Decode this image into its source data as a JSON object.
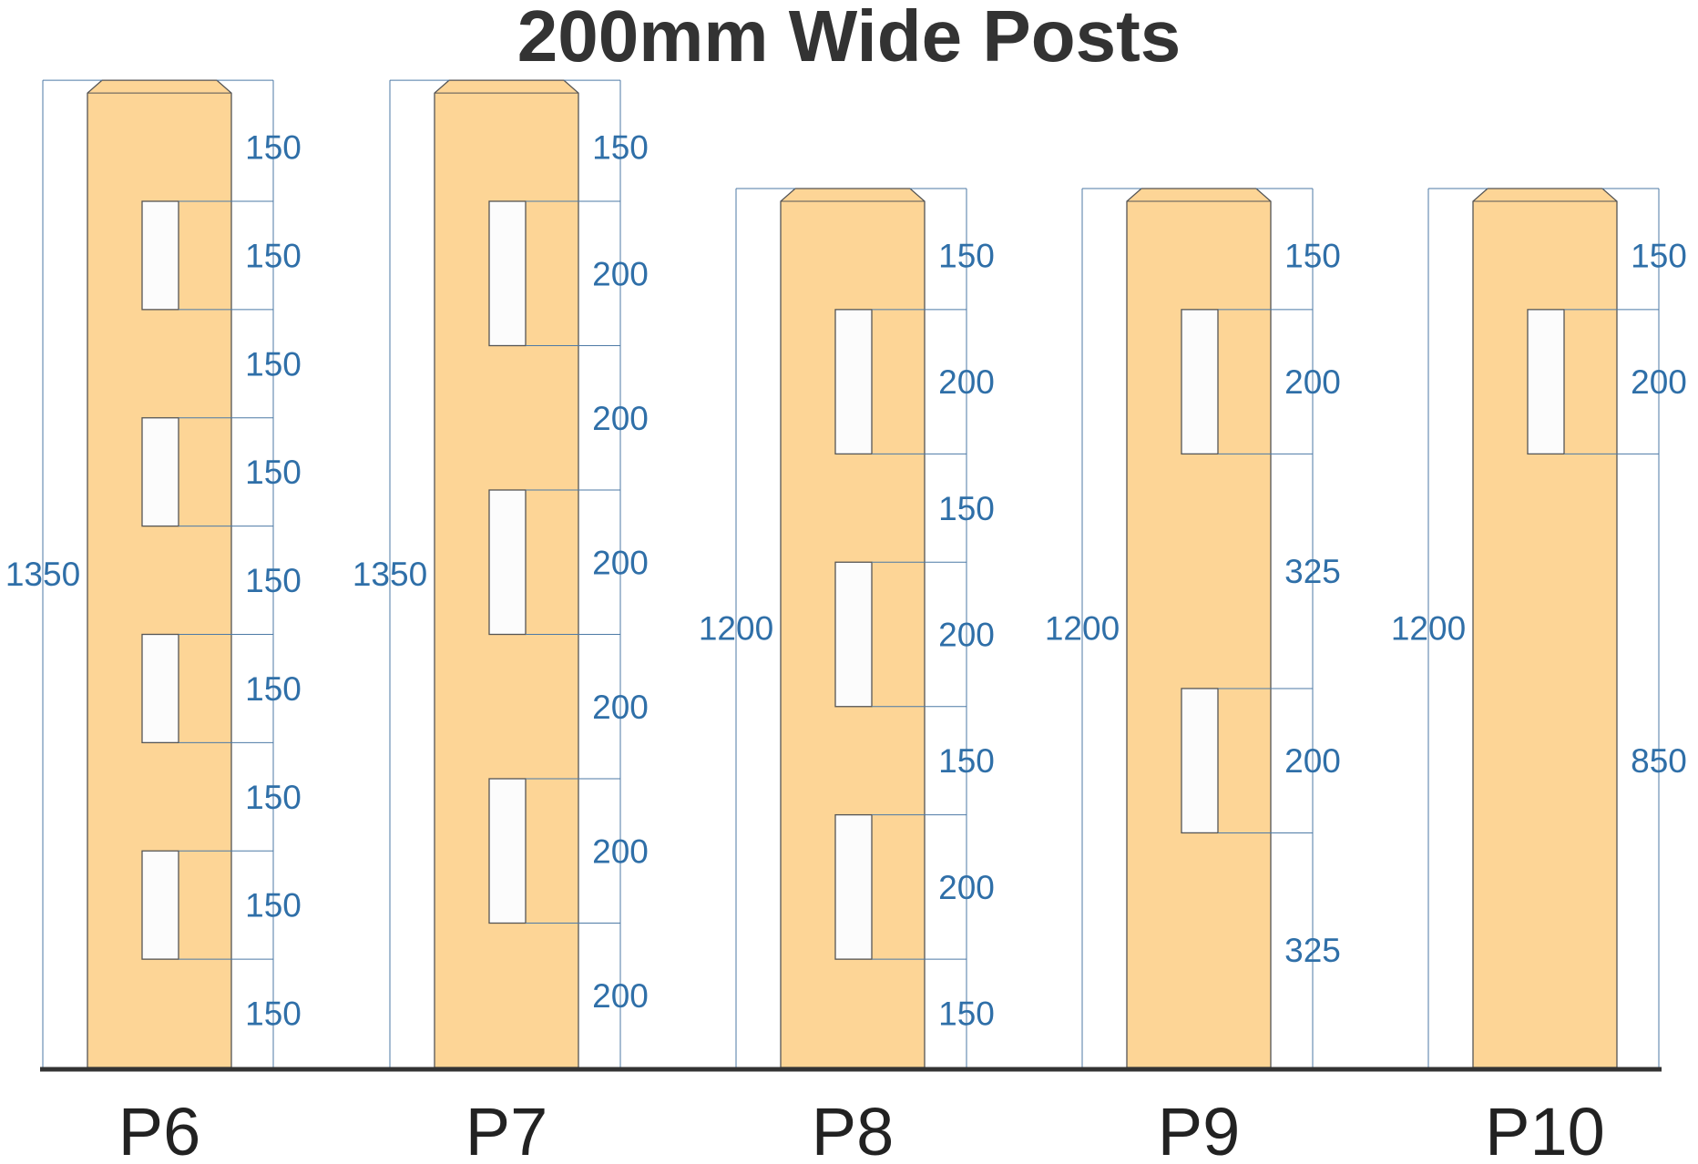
{
  "title": "200mm Wide Posts",
  "colors": {
    "post_fill": "#fdd596",
    "post_stroke": "#555555",
    "mortise_fill": "#fcfcfc",
    "dimension_line": "#4d7aa6",
    "dimension_text": "#2f6fa8",
    "ground_line": "#333333",
    "title_text": "#333333",
    "label_text": "#222222"
  },
  "posts": [
    {
      "name": "P6",
      "height": "1350",
      "segments": [
        {
          "value": "150",
          "type": "gap"
        },
        {
          "value": "150",
          "type": "mortise"
        },
        {
          "value": "150",
          "type": "gap"
        },
        {
          "value": "150",
          "type": "mortise"
        },
        {
          "value": "150",
          "type": "gap"
        },
        {
          "value": "150",
          "type": "mortise"
        },
        {
          "value": "150",
          "type": "gap"
        },
        {
          "value": "150",
          "type": "mortise"
        },
        {
          "value": "150",
          "type": "gap"
        }
      ]
    },
    {
      "name": "P7",
      "height": "1350",
      "segments": [
        {
          "value": "150",
          "type": "gap"
        },
        {
          "value": "200",
          "type": "mortise"
        },
        {
          "value": "200",
          "type": "gap"
        },
        {
          "value": "200",
          "type": "mortise"
        },
        {
          "value": "200",
          "type": "gap"
        },
        {
          "value": "200",
          "type": "mortise"
        },
        {
          "value": "200",
          "type": "gap"
        }
      ]
    },
    {
      "name": "P8",
      "height": "1200",
      "segments": [
        {
          "value": "150",
          "type": "gap"
        },
        {
          "value": "200",
          "type": "mortise"
        },
        {
          "value": "150",
          "type": "gap"
        },
        {
          "value": "200",
          "type": "mortise"
        },
        {
          "value": "150",
          "type": "gap"
        },
        {
          "value": "200",
          "type": "mortise"
        },
        {
          "value": "150",
          "type": "gap"
        }
      ]
    },
    {
      "name": "P9",
      "height": "1200",
      "segments": [
        {
          "value": "150",
          "type": "gap"
        },
        {
          "value": "200",
          "type": "mortise"
        },
        {
          "value": "325",
          "type": "gap"
        },
        {
          "value": "200",
          "type": "mortise"
        },
        {
          "value": "325",
          "type": "gap"
        }
      ]
    },
    {
      "name": "P10",
      "height": "1200",
      "segments": [
        {
          "value": "150",
          "type": "gap"
        },
        {
          "value": "200",
          "type": "mortise"
        },
        {
          "value": "850",
          "type": "gap"
        }
      ]
    }
  ]
}
